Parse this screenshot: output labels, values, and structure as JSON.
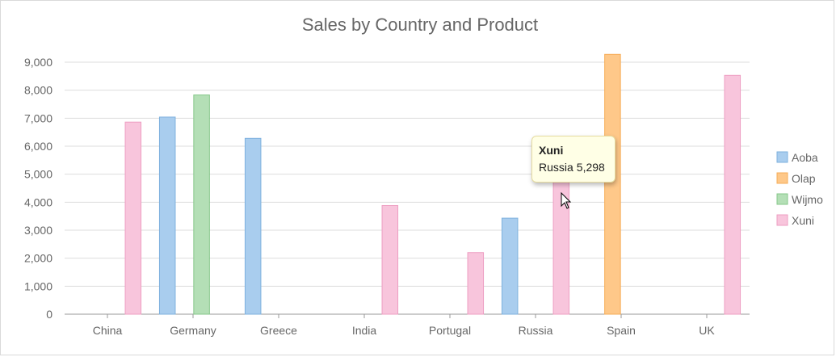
{
  "chart_data": {
    "type": "bar",
    "title": "Sales by Country and Product",
    "xlabel": "",
    "ylabel": "",
    "categories": [
      "China",
      "Germany",
      "Greece",
      "India",
      "Portugal",
      "Russia",
      "Spain",
      "UK"
    ],
    "ylim": [
      0,
      9000
    ],
    "yticks": [
      0,
      1000,
      2000,
      3000,
      4000,
      5000,
      6000,
      7000,
      8000,
      9000
    ],
    "ytick_labels": [
      "0",
      "1,000",
      "2,000",
      "3,000",
      "4,000",
      "5,000",
      "6,000",
      "7,000",
      "8,000",
      "9,000"
    ],
    "grid": true,
    "legend_position": "right",
    "series": [
      {
        "name": "Aoba",
        "color": "#a9cdee",
        "edge": "#7eb1de",
        "values": [
          null,
          7040,
          6280,
          null,
          null,
          3430,
          null,
          null
        ]
      },
      {
        "name": "Olap",
        "color": "#fec889",
        "edge": "#f6ac57",
        "values": [
          null,
          null,
          null,
          null,
          null,
          null,
          9280,
          null
        ]
      },
      {
        "name": "Wijmo",
        "color": "#b4dfb6",
        "edge": "#86c78a",
        "values": [
          null,
          7830,
          null,
          null,
          null,
          null,
          null,
          null
        ]
      },
      {
        "name": "Xuni",
        "color": "#f8c5dc",
        "edge": "#ee9ec2",
        "values": [
          6860,
          null,
          null,
          3880,
          2200,
          5298,
          null,
          8530
        ]
      }
    ]
  },
  "tooltip": {
    "series": "Xuni",
    "category": "Russia",
    "value": "5,298"
  }
}
